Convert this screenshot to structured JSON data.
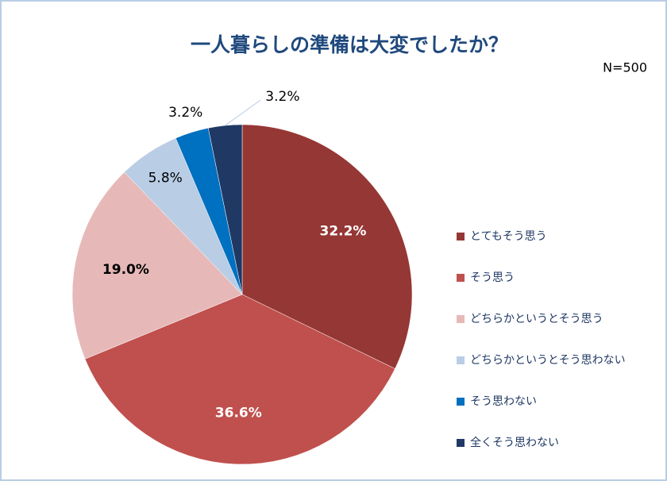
{
  "chart_data": {
    "type": "pie",
    "title": "一人暮らしの準備は大変でしたか？",
    "subtitle": "N=500",
    "categories": [
      "とてもそう思う",
      "そう思う",
      "どちらかというとそう思う",
      "どちらかというとそう思わない",
      "そう思わない",
      "全くそう思わない"
    ],
    "values": [
      32.2,
      36.6,
      19.0,
      5.8,
      3.2,
      3.2
    ],
    "value_labels": [
      "32.2%",
      "36.6%",
      "19.0%",
      "5.8%",
      "3.2%",
      "3.2%"
    ],
    "colors": [
      "#953735",
      "#c0504d",
      "#e6b9b8",
      "#b9cde5",
      "#0070c0",
      "#1f3864"
    ],
    "legend": "right"
  }
}
